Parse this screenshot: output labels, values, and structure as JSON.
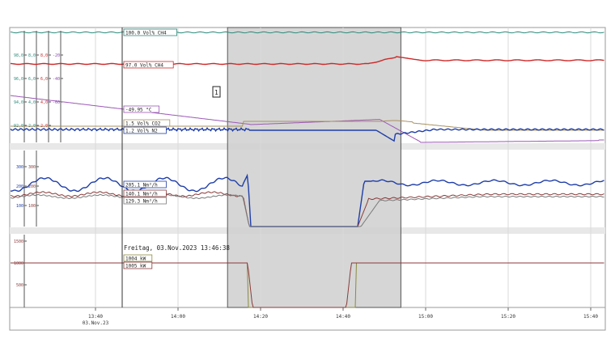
{
  "chart_data": {
    "type": "line",
    "panels": [
      {
        "id": "top",
        "axes": [
          {
            "color": "#2a8a7a",
            "ticks": [
              "98,0",
              "96,0",
              "94,0",
              "92,0"
            ]
          },
          {
            "color": "#2a8a7a",
            "ticks": [
              "8,0",
              "6,0",
              "4,0",
              "2,0"
            ]
          },
          {
            "color": "#cc2a2a",
            "ticks": [
              "8,0",
              "6,0",
              "4,0",
              "2,0"
            ]
          },
          {
            "color": "#8a4ab0",
            "ticks": [
              "-20",
              "-40",
              "-60"
            ]
          }
        ],
        "series": [
          {
            "key": "ch4_top",
            "label": "100.0 Vol% CH4",
            "color": "#2a8a7a"
          },
          {
            "key": "ch4",
            "label": "97.0 Vol% CH4",
            "color": "#cc2a2a"
          },
          {
            "key": "temp",
            "label": "-49.95 °C",
            "color": "#9b59b6"
          },
          {
            "key": "co2",
            "label": "1.5 Vol% CO2",
            "color": "#a89060"
          },
          {
            "key": "n2",
            "label": "1.2 Vol% N2",
            "color": "#1f3ea8"
          }
        ]
      },
      {
        "id": "middle",
        "axes": [
          {
            "color": "#1f3ea8",
            "ticks": [
              "300",
              "200",
              "100"
            ]
          },
          {
            "color": "#8a3a3a",
            "ticks": [
              "300",
              "200",
              "100"
            ]
          }
        ],
        "series": [
          {
            "key": "flow1",
            "label": "205.1 Nm³/h",
            "color": "#1f3ea8"
          },
          {
            "key": "flow2",
            "label": "140.1 Nm³/h",
            "color": "#8a3a3a"
          },
          {
            "key": "flow3",
            "label": "129.3 Nm³/h",
            "color": "#7a7a7a"
          }
        ]
      },
      {
        "id": "bottom",
        "axes": [
          {
            "color": "#8a3a3a",
            "ticks": [
              "1500",
              "1000",
              "500"
            ]
          }
        ],
        "series": [
          {
            "key": "power1",
            "label": "1004 kW",
            "color": "#8a8a40"
          },
          {
            "key": "power2",
            "label": "1005 kW",
            "color": "#8a3a3a"
          }
        ]
      }
    ],
    "cursor_text": "Freitag, 03.Nov.2023 13:46:38",
    "marker_label": "1",
    "x_ticks": [
      "13:40",
      "14:00",
      "14:20",
      "14:40",
      "15:00",
      "15:20",
      "15:40"
    ],
    "x_date": "03.Nov.23",
    "highlight_range": [
      "14:12",
      "14:54"
    ]
  }
}
